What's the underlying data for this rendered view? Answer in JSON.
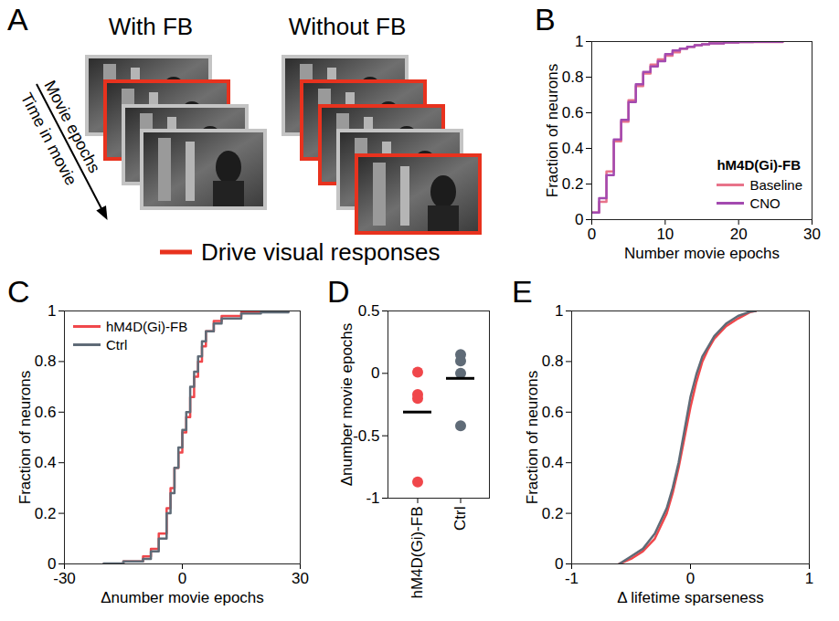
{
  "diagram": {
    "panel_label": "A",
    "columns": [
      {
        "title": "With FB",
        "frames": [
          false,
          true,
          false,
          false
        ]
      },
      {
        "title": "Without FB",
        "frames": [
          false,
          true,
          true,
          false,
          true
        ]
      }
    ],
    "arrow_labels": [
      "Movie epochs",
      "Time in movie"
    ],
    "legend_label": "Drive visual responses",
    "highlight_color": "#e8321e",
    "frame_color": "#c4c4c4"
  },
  "chart_data": [
    {
      "panel_label": "B",
      "type": "line",
      "line_style": "step",
      "xlabel": "Number movie epochs",
      "ylabel": "Fraction of neurons",
      "xlim": [
        0,
        30
      ],
      "xticks": [
        0,
        10,
        20,
        30
      ],
      "ylim": [
        0,
        1
      ],
      "yticks": [
        0,
        0.2,
        0.4,
        0.6,
        0.8,
        1
      ],
      "x": [
        0,
        1,
        2,
        3,
        4,
        5,
        6,
        7,
        8,
        9,
        10,
        11,
        12,
        13,
        14,
        15,
        16,
        18,
        20,
        22,
        26
      ],
      "series": [
        {
          "name": "Baseline",
          "color": "#e8738a",
          "values": [
            0.04,
            0.1,
            0.27,
            0.44,
            0.55,
            0.67,
            0.75,
            0.82,
            0.87,
            0.9,
            0.92,
            0.94,
            0.96,
            0.97,
            0.98,
            0.985,
            0.99,
            0.995,
            0.997,
            0.998,
            1
          ]
        },
        {
          "name": "CNO",
          "color": "#a34ab0",
          "values": [
            0.04,
            0.12,
            0.25,
            0.45,
            0.56,
            0.66,
            0.76,
            0.83,
            0.86,
            0.89,
            0.93,
            0.95,
            0.96,
            0.97,
            0.98,
            0.985,
            0.99,
            0.995,
            0.997,
            0.999,
            1
          ]
        }
      ],
      "legend": "lower right",
      "legend_title": "hM4D(Gi)-FB"
    },
    {
      "panel_label": "C",
      "type": "line",
      "line_style": "step",
      "xlabel": "Δnumber movie epochs",
      "ylabel": "Fraction of neurons",
      "xlim": [
        -30,
        30
      ],
      "xticks": [
        -30,
        0,
        30
      ],
      "ylim": [
        0,
        1
      ],
      "yticks": [
        0,
        0.2,
        0.4,
        0.6,
        0.8,
        1
      ],
      "x": [
        -20,
        -15,
        -10,
        -8,
        -6,
        -4,
        -3,
        -2,
        -1,
        0,
        1,
        2,
        3,
        4,
        5,
        6,
        8,
        10,
        15,
        20,
        27
      ],
      "series": [
        {
          "name": "hM4D(Gi)-FB",
          "color": "#f0474b",
          "values": [
            0,
            0.01,
            0.03,
            0.06,
            0.12,
            0.22,
            0.3,
            0.38,
            0.44,
            0.52,
            0.58,
            0.66,
            0.74,
            0.8,
            0.86,
            0.92,
            0.96,
            0.98,
            0.995,
            0.998,
            1
          ]
        },
        {
          "name": "Ctrl",
          "color": "#5f6b77",
          "values": [
            0.002,
            0.01,
            0.02,
            0.05,
            0.1,
            0.2,
            0.28,
            0.38,
            0.46,
            0.53,
            0.6,
            0.7,
            0.76,
            0.82,
            0.88,
            0.92,
            0.95,
            0.97,
            0.99,
            0.995,
            1
          ]
        }
      ],
      "legend": "upper left"
    },
    {
      "panel_label": "D",
      "type": "scatter",
      "ylabel": "Δnumber movie epochs",
      "ylim": [
        -1,
        0.5
      ],
      "yticks": [
        -1,
        -0.5,
        0,
        0.5
      ],
      "categories": [
        "hM4D(Gi)-FB",
        "Ctrl"
      ],
      "values": [
        [
          0.01,
          -0.17,
          -0.2,
          -0.87
        ],
        [
          0.15,
          0.1,
          0,
          -0.42
        ]
      ],
      "means": [
        -0.31,
        -0.04
      ],
      "colors": [
        "#f0474b",
        "#5f6b77"
      ]
    },
    {
      "panel_label": "E",
      "type": "line",
      "line_style": "solid",
      "xlabel": "Δ lifetime sparseness",
      "ylabel": "Fraction of neurons",
      "xlim": [
        -1,
        1
      ],
      "xticks": [
        -1,
        0,
        1
      ],
      "ylim": [
        0,
        1
      ],
      "yticks": [
        0,
        0.2,
        0.4,
        0.6,
        0.8,
        1
      ],
      "x": [
        -0.6,
        -0.5,
        -0.4,
        -0.3,
        -0.2,
        -0.15,
        -0.1,
        -0.05,
        0,
        0.05,
        0.1,
        0.15,
        0.2,
        0.3,
        0.4,
        0.5,
        0.55
      ],
      "series": [
        {
          "color": "#f0474b",
          "values": [
            0,
            0.02,
            0.05,
            0.1,
            0.2,
            0.28,
            0.38,
            0.5,
            0.62,
            0.72,
            0.8,
            0.85,
            0.89,
            0.94,
            0.97,
            0.995,
            1
          ]
        },
        {
          "color": "#5f6b77",
          "values": [
            0,
            0.03,
            0.06,
            0.12,
            0.22,
            0.3,
            0.4,
            0.53,
            0.66,
            0.75,
            0.82,
            0.86,
            0.9,
            0.95,
            0.98,
            0.997,
            1
          ]
        }
      ]
    }
  ]
}
